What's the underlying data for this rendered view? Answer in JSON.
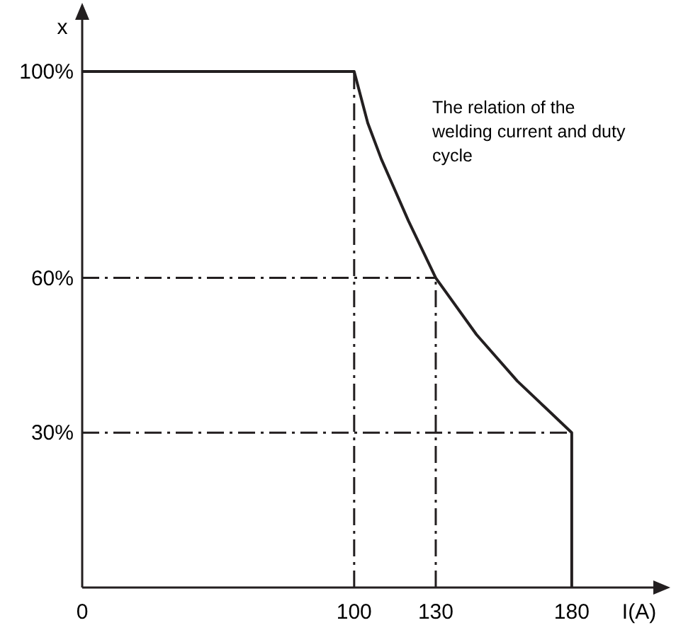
{
  "chart_data": {
    "type": "line",
    "xlabel": "I(A)",
    "ylabel": "x",
    "annotations": [
      "The relation of the welding current and duty cycle"
    ],
    "series": [
      {
        "color": "#231f20",
        "x": [
          0,
          100,
          105,
          110,
          120,
          130,
          145,
          160,
          170,
          180,
          180
        ],
        "values": [
          100,
          100,
          90,
          83,
          71,
          60,
          49,
          40,
          35,
          30,
          0
        ]
      }
    ],
    "xlim": [
      0,
      210
    ],
    "ylim": [
      0,
      110
    ],
    "xticks": [
      0,
      100,
      130,
      180
    ],
    "yticks": [
      {
        "value": 30,
        "label": "30%"
      },
      {
        "value": 60,
        "label": "60%"
      },
      {
        "value": 100,
        "label": "100%"
      }
    ],
    "ref_lines": [
      {
        "axis": "x",
        "value": 100,
        "line_style": "dashed"
      },
      {
        "axis": "x",
        "value": 130,
        "line_style": "dashed"
      },
      {
        "axis": "y",
        "value": 60,
        "line_style": "dashed"
      },
      {
        "axis": "y",
        "value": 30,
        "line_style": "dashed"
      }
    ],
    "grid": false,
    "marker": "none",
    "line_style": "solid"
  }
}
